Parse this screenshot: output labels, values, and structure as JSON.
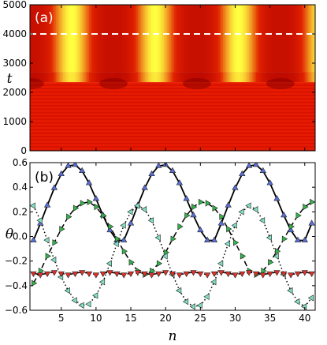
{
  "chart_data": [
    {
      "type": "heatmap",
      "panel_label": "(a)",
      "ylabel": "t",
      "xlabel": "",
      "xlim": [
        0.5,
        41.5
      ],
      "ylim": [
        0,
        5000
      ],
      "yticks": [
        0,
        1000,
        2000,
        3000,
        4000,
        5000
      ],
      "grid": false,
      "transition_t": 2350,
      "dashed_line": {
        "t": 4000,
        "color": "#ffffff"
      },
      "bright_columns_n": [
        6.5,
        18.5,
        30.5,
        42.5
      ],
      "dark_columns_n": [
        12.5,
        24.5,
        36.5,
        0.5
      ],
      "colors": {
        "low": "#b00000",
        "mid": "#e02000",
        "high": "#ffff40",
        "pre": "#dd1500"
      }
    },
    {
      "type": "scatter",
      "panel_label": "(b)",
      "xlabel": "n",
      "ylabel": "θ",
      "xlim": [
        0.5,
        41.5
      ],
      "ylim": [
        -0.6,
        0.6
      ],
      "xticks": [
        5,
        10,
        15,
        20,
        25,
        30,
        35,
        40
      ],
      "yticks": [
        -0.6,
        -0.4,
        -0.2,
        0.0,
        0.2,
        0.4,
        0.6
      ],
      "ytick_labels": [
        "−0.6",
        "−0.4",
        "−0.2",
        "0.0",
        "0.2",
        "0.4",
        "0.6"
      ],
      "grid": false,
      "series": [
        {
          "marker": "triangle-up",
          "color": "#5a6fd6",
          "line": "solid",
          "line_color": "#000000",
          "values": [
            -0.032,
            0.105,
            0.252,
            0.393,
            0.506,
            0.573,
            0.582,
            0.532,
            0.433,
            0.305,
            0.171,
            0.05,
            -0.032,
            -0.032,
            0.105,
            0.252,
            0.393,
            0.506,
            0.573,
            0.582,
            0.532,
            0.433,
            0.305,
            0.171,
            0.05,
            -0.032,
            -0.032,
            0.105,
            0.252,
            0.393,
            0.506,
            0.573,
            0.582,
            0.532,
            0.433,
            0.305,
            0.171,
            0.05,
            -0.032,
            -0.032,
            0.105
          ]
        },
        {
          "marker": "triangle-right",
          "color": "#33b34a",
          "line": "dashed",
          "line_color": "#000000",
          "values": [
            -0.38,
            -0.28,
            -0.16,
            -0.05,
            0.06,
            0.16,
            0.23,
            0.27,
            0.28,
            0.24,
            0.17,
            0.08,
            -0.02,
            -0.12,
            -0.21,
            -0.28,
            -0.31,
            -0.28,
            -0.22,
            -0.13,
            -0.02,
            0.08,
            0.17,
            0.24,
            0.28,
            0.27,
            0.23,
            0.16,
            0.06,
            -0.05,
            -0.16,
            -0.28,
            -0.31,
            -0.28,
            -0.21,
            -0.12,
            -0.02,
            0.08,
            0.17,
            0.24,
            0.28
          ]
        },
        {
          "marker": "triangle-left",
          "color": "#7fe0c2",
          "line": "dotted",
          "line_color": "#000000",
          "values": [
            0.25,
            0.13,
            -0.03,
            -0.19,
            -0.33,
            -0.44,
            -0.52,
            -0.56,
            -0.55,
            -0.48,
            -0.37,
            -0.22,
            -0.06,
            0.09,
            0.2,
            0.25,
            0.22,
            0.13,
            -0.01,
            -0.16,
            -0.31,
            -0.44,
            -0.53,
            -0.57,
            -0.56,
            -0.49,
            -0.37,
            -0.22,
            -0.06,
            0.09,
            0.2,
            0.25,
            0.22,
            0.13,
            -0.01,
            -0.16,
            -0.31,
            -0.44,
            -0.53,
            -0.57,
            -0.5
          ]
        },
        {
          "marker": "triangle-down",
          "color": "#e0302a",
          "line": "dashed",
          "line_color": "#000000",
          "values": [
            -0.3,
            -0.31,
            -0.3,
            -0.29,
            -0.3,
            -0.31,
            -0.3,
            -0.29,
            -0.3,
            -0.31,
            -0.3,
            -0.29,
            -0.3,
            -0.31,
            -0.3,
            -0.29,
            -0.3,
            -0.31,
            -0.3,
            -0.29,
            -0.3,
            -0.31,
            -0.3,
            -0.29,
            -0.3,
            -0.31,
            -0.3,
            -0.29,
            -0.3,
            -0.31,
            -0.3,
            -0.29,
            -0.3,
            -0.31,
            -0.3,
            -0.29,
            -0.3,
            -0.31,
            -0.3,
            -0.29,
            -0.3
          ]
        }
      ]
    }
  ]
}
